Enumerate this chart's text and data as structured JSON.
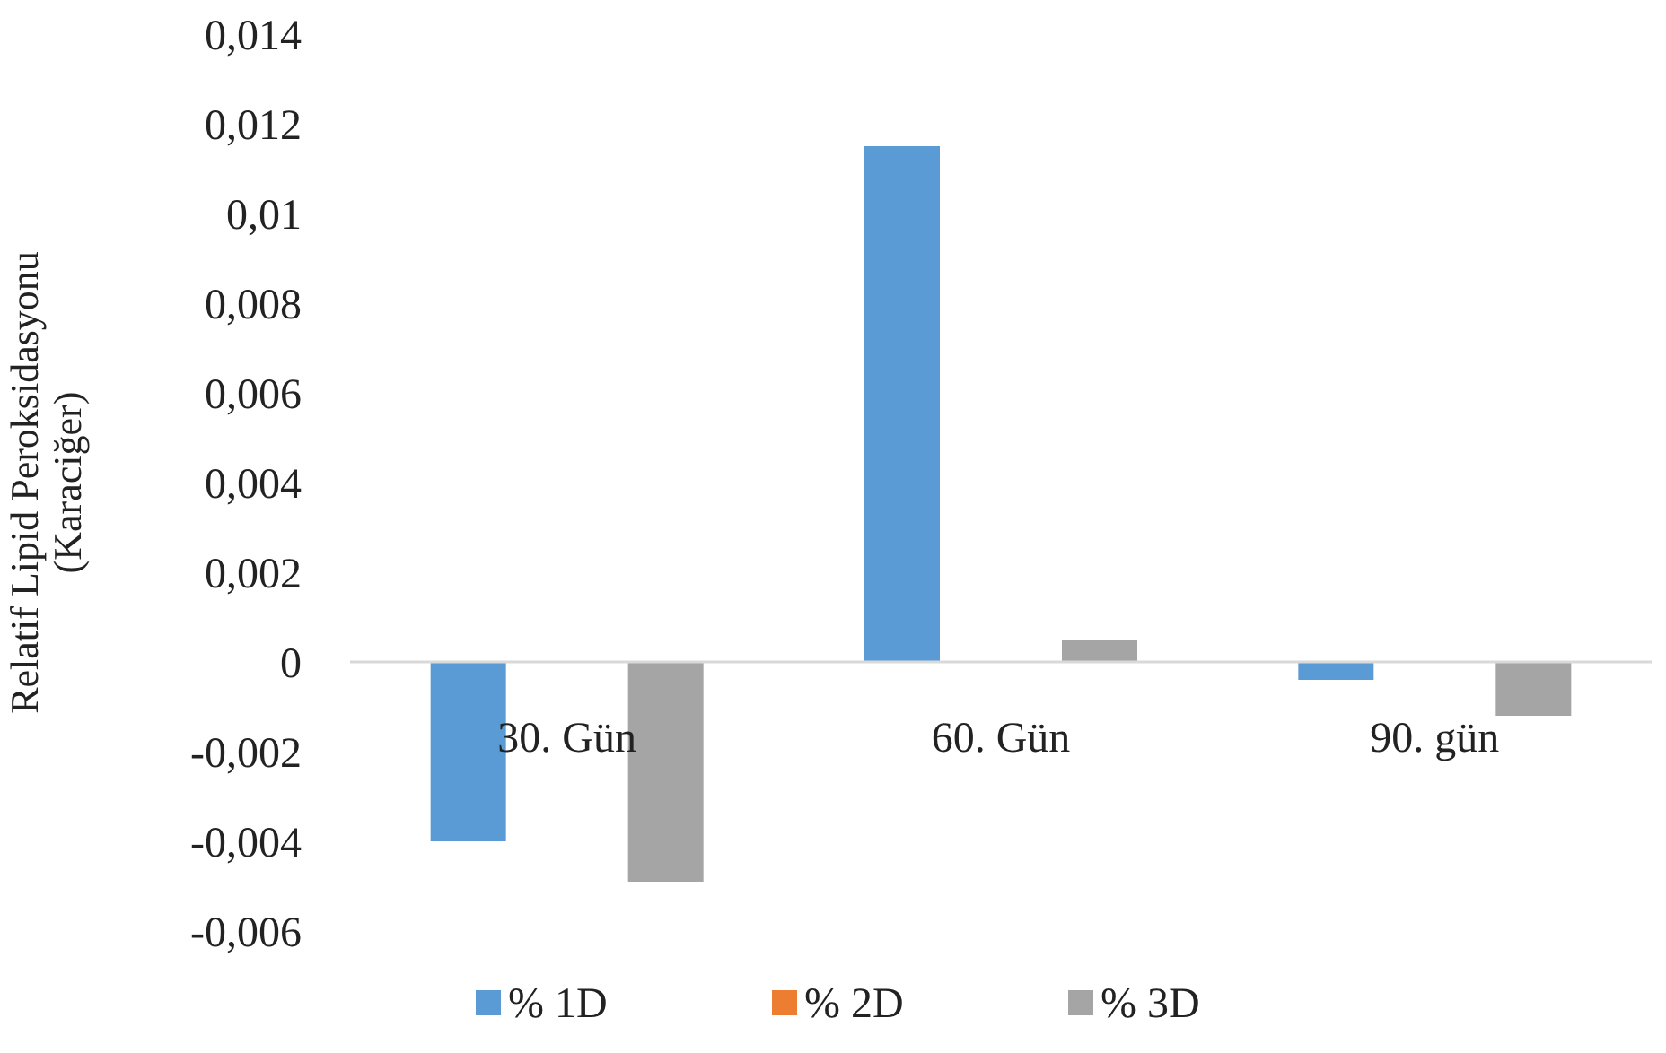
{
  "chart_data": {
    "type": "bar",
    "ylabel": "Relatif  Lipid Peroksidasyonu\n(Karaciğer)",
    "categories": [
      "30. Gün",
      "60. Gün",
      "90. gün"
    ],
    "series": [
      {
        "name": "% 1D",
        "color": "#5b9bd5",
        "values": [
          -0.004,
          0.0115,
          -0.0004
        ]
      },
      {
        "name": "% 2D",
        "color": "#ed7d31",
        "values": [
          0,
          0,
          0
        ]
      },
      {
        "name": "% 3D",
        "color": "#a5a5a5",
        "values": [
          -0.0049,
          0.0005,
          -0.0012
        ]
      }
    ],
    "ylim": [
      -0.006,
      0.014
    ],
    "yticks": [
      {
        "value": -0.006,
        "label": "-0,006"
      },
      {
        "value": -0.004,
        "label": "-0,004"
      },
      {
        "value": -0.002,
        "label": "-0,002"
      },
      {
        "value": 0,
        "label": "0"
      },
      {
        "value": 0.002,
        "label": "0,002"
      },
      {
        "value": 0.004,
        "label": "0,004"
      },
      {
        "value": 0.006,
        "label": "0,006"
      },
      {
        "value": 0.008,
        "label": "0,008"
      },
      {
        "value": 0.01,
        "label": "0,01"
      },
      {
        "value": 0.012,
        "label": "0,012"
      },
      {
        "value": 0.014,
        "label": "0,014"
      }
    ],
    "grid": false,
    "legend": "bottom"
  }
}
